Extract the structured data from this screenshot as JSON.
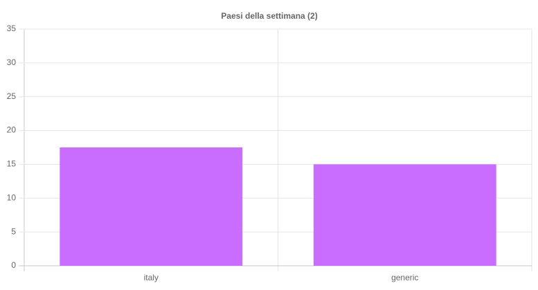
{
  "chart_data": {
    "type": "bar",
    "title": "Paesi della settimana (2)",
    "categories": [
      "italy",
      "generic"
    ],
    "values": [
      17.5,
      15
    ],
    "color": "#c86dff",
    "ylim": [
      0,
      35
    ],
    "yticks": [
      0,
      5,
      10,
      15,
      20,
      25,
      30,
      35
    ],
    "grid": true
  }
}
